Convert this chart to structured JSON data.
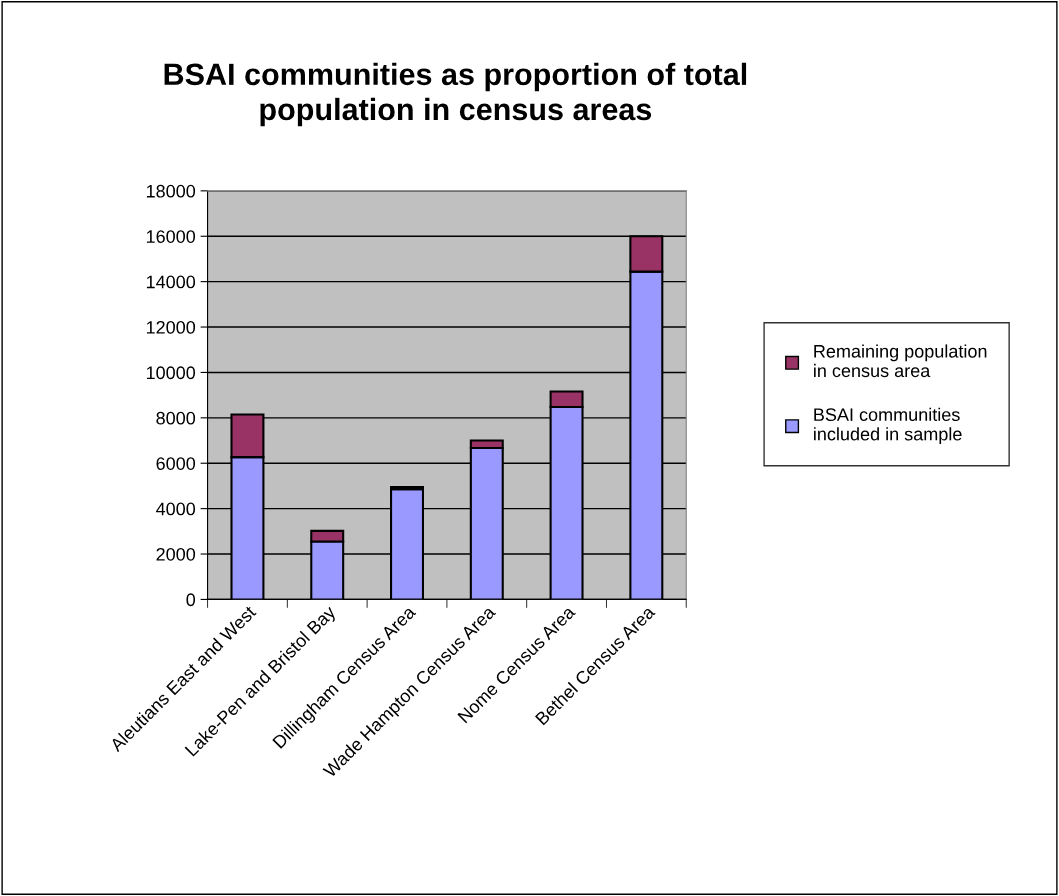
{
  "chart_data": {
    "type": "bar",
    "title": "BSAI communities as proportion of total\npopulation in census areas",
    "categories": [
      "Aleutians East and West",
      "Lake-Pen and Bristol Bay",
      "Dillingham Census Area",
      "Wade Hampton Census Area",
      "Nome Census Area",
      "Bethel Census Area"
    ],
    "stacked": true,
    "series": [
      {
        "name": "BSAI communities\nincluded in sample",
        "color": "#9999ff",
        "values": [
          6270,
          2550,
          4860,
          6670,
          8480,
          14440
        ]
      },
      {
        "name": "Remaining population\nin census area",
        "color": "#993366",
        "values": [
          1880,
          470,
          90,
          330,
          680,
          1560
        ]
      }
    ],
    "ylim": [
      0,
      18000
    ],
    "yticks": [
      0,
      2000,
      4000,
      6000,
      8000,
      10000,
      12000,
      14000,
      16000,
      18000
    ],
    "grid": "y",
    "legend": "right"
  }
}
